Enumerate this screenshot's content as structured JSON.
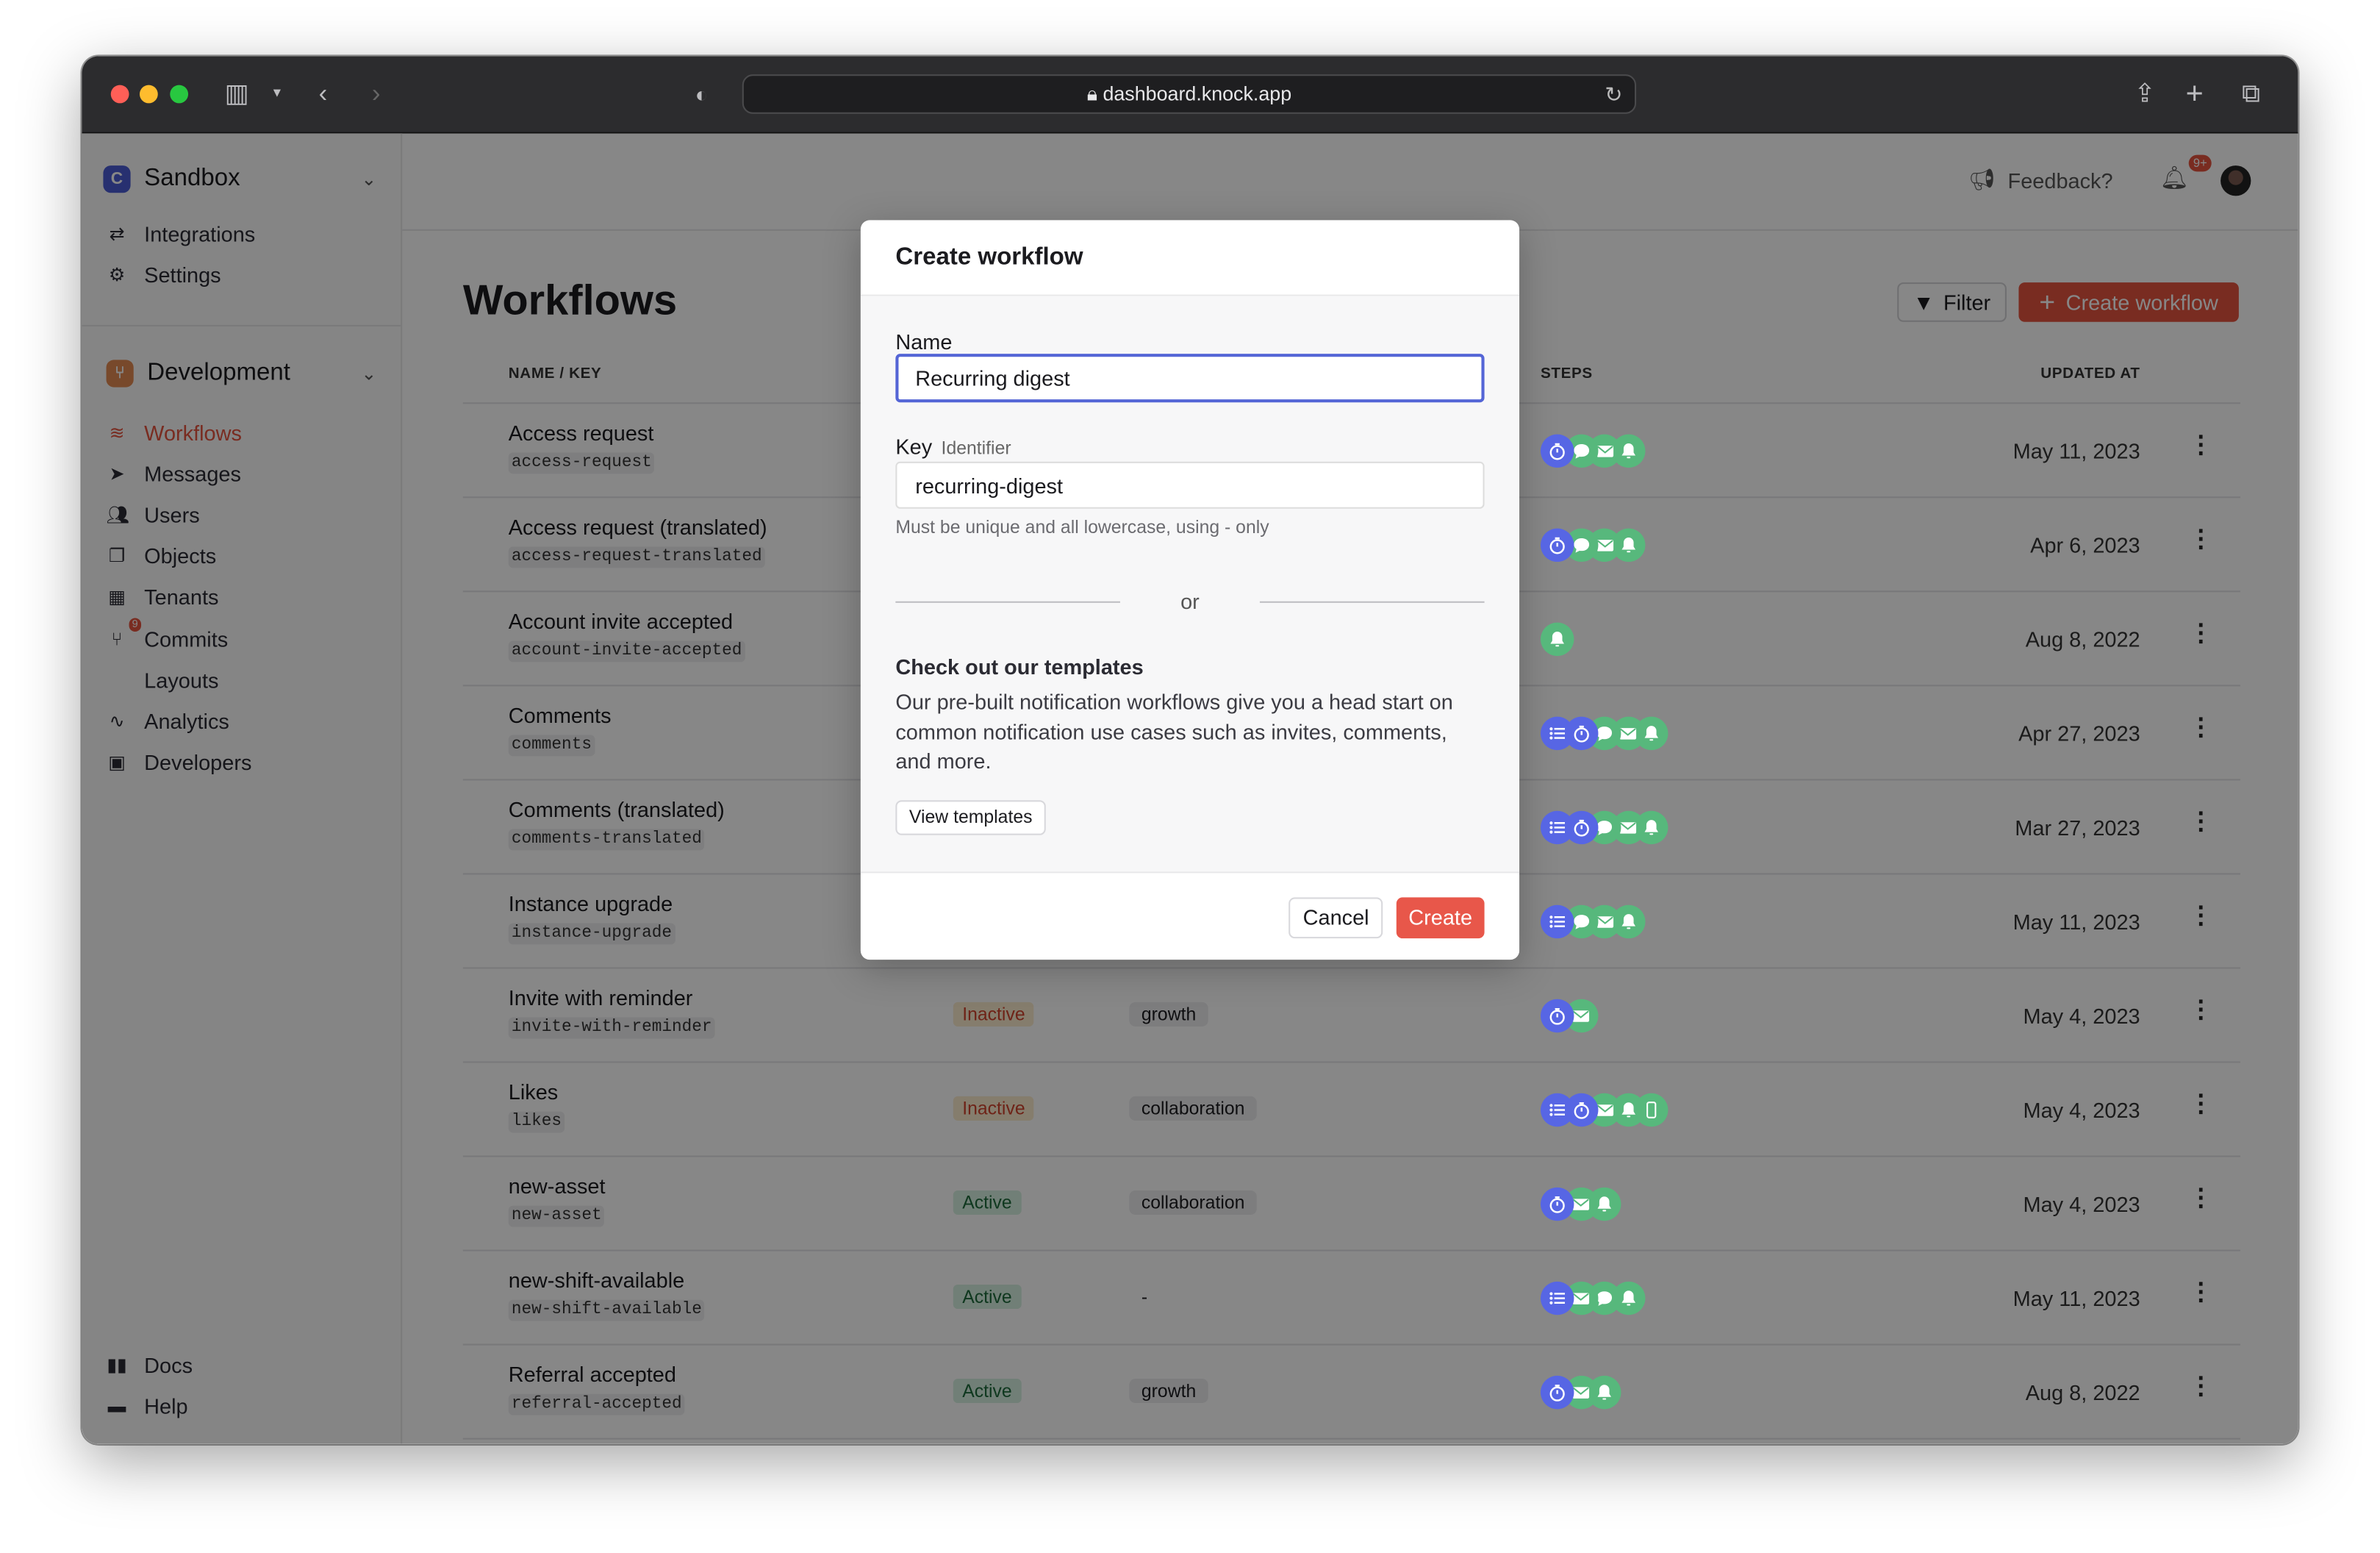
{
  "browser": {
    "url": "dashboard.knock.app"
  },
  "colors": {
    "accent": "#e4533f",
    "step_blue": "#5766e4",
    "step_green": "#57b87c",
    "focus": "#5465d6"
  },
  "sidebar": {
    "workspace": {
      "badge": "C",
      "name": "Sandbox"
    },
    "workspace_items": [
      {
        "label": "Integrations",
        "icon": "arrows-swap-icon"
      },
      {
        "label": "Settings",
        "icon": "gear-icon"
      }
    ],
    "environment": {
      "name": "Development"
    },
    "items": [
      {
        "label": "Workflows",
        "icon": "stack-icon",
        "active": true
      },
      {
        "label": "Messages",
        "icon": "paper-plane-icon"
      },
      {
        "label": "Users",
        "icon": "users-icon"
      },
      {
        "label": "Objects",
        "icon": "objects-icon"
      },
      {
        "label": "Tenants",
        "icon": "building-icon"
      },
      {
        "label": "Commits",
        "icon": "git-branch-icon",
        "badge": "9"
      },
      {
        "label": "Layouts",
        "icon": "code-icon"
      },
      {
        "label": "Analytics",
        "icon": "pulse-icon"
      },
      {
        "label": "Developers",
        "icon": "terminal-icon"
      }
    ],
    "footer": [
      {
        "label": "Docs",
        "icon": "book-icon"
      },
      {
        "label": "Help",
        "icon": "chat-icon"
      }
    ]
  },
  "topbar": {
    "feedback": "Feedback?",
    "notifications": "9+"
  },
  "page": {
    "title": "Workflows",
    "filter": "Filter",
    "create": "Create workflow"
  },
  "table": {
    "headers": {
      "name": "NAME / KEY",
      "steps": "STEPS",
      "updated": "UPDATED AT"
    },
    "rows": [
      {
        "name": "Access request",
        "key": "access-request",
        "steps": [
          "delay",
          "chat",
          "email",
          "in-app"
        ],
        "updated": "May 11, 2023"
      },
      {
        "name": "Access request (translated)",
        "key": "access-request-translated",
        "steps": [
          "delay",
          "chat",
          "email",
          "in-app"
        ],
        "updated": "Apr 6, 2023"
      },
      {
        "name": "Account invite accepted",
        "key": "account-invite-accepted",
        "steps": [
          "in-app"
        ],
        "updated": "Aug 8, 2022"
      },
      {
        "name": "Comments",
        "key": "comments",
        "steps": [
          "batch",
          "delay",
          "chat",
          "email",
          "in-app"
        ],
        "updated": "Apr 27, 2023"
      },
      {
        "name": "Comments (translated)",
        "key": "comments-translated",
        "steps": [
          "batch",
          "delay",
          "chat",
          "email",
          "in-app"
        ],
        "updated": "Mar 27, 2023"
      },
      {
        "name": "Instance upgrade",
        "key": "instance-upgrade",
        "steps": [
          "batch",
          "chat",
          "email",
          "in-app"
        ],
        "updated": "May 11, 2023"
      },
      {
        "name": "Invite with reminder",
        "key": "invite-with-reminder",
        "status": "Inactive",
        "category": "growth",
        "steps": [
          "delay",
          "email"
        ],
        "updated": "May 4, 2023"
      },
      {
        "name": "Likes",
        "key": "likes",
        "status": "Inactive",
        "category": "collaboration",
        "steps": [
          "batch",
          "delay",
          "email",
          "in-app",
          "sms"
        ],
        "updated": "May 4, 2023"
      },
      {
        "name": "new-asset",
        "key": "new-asset",
        "status": "Active",
        "category": "collaboration",
        "steps": [
          "delay",
          "email",
          "in-app"
        ],
        "updated": "May 4, 2023"
      },
      {
        "name": "new-shift-available",
        "key": "new-shift-available",
        "status": "Active",
        "category": "-",
        "steps": [
          "batch",
          "email",
          "chat",
          "in-app"
        ],
        "updated": "May 11, 2023"
      },
      {
        "name": "Referral accepted",
        "key": "referral-accepted",
        "status": "Active",
        "category": "growth",
        "steps": [
          "delay",
          "email",
          "in-app"
        ],
        "updated": "Aug 8, 2022"
      }
    ]
  },
  "modal": {
    "title": "Create workflow",
    "name_label": "Name",
    "name_value": "Recurring digest",
    "key_label": "Key",
    "key_sublabel": "Identifier",
    "key_value": "recurring-digest",
    "key_hint": "Must be unique and all lowercase, using - only",
    "or": "or",
    "templates_title": "Check out our templates",
    "templates_text": "Our pre-built notification workflows give you a head start on common notification use cases such as invites, comments, and more.",
    "view_templates": "View templates",
    "cancel": "Cancel",
    "create": "Create"
  }
}
